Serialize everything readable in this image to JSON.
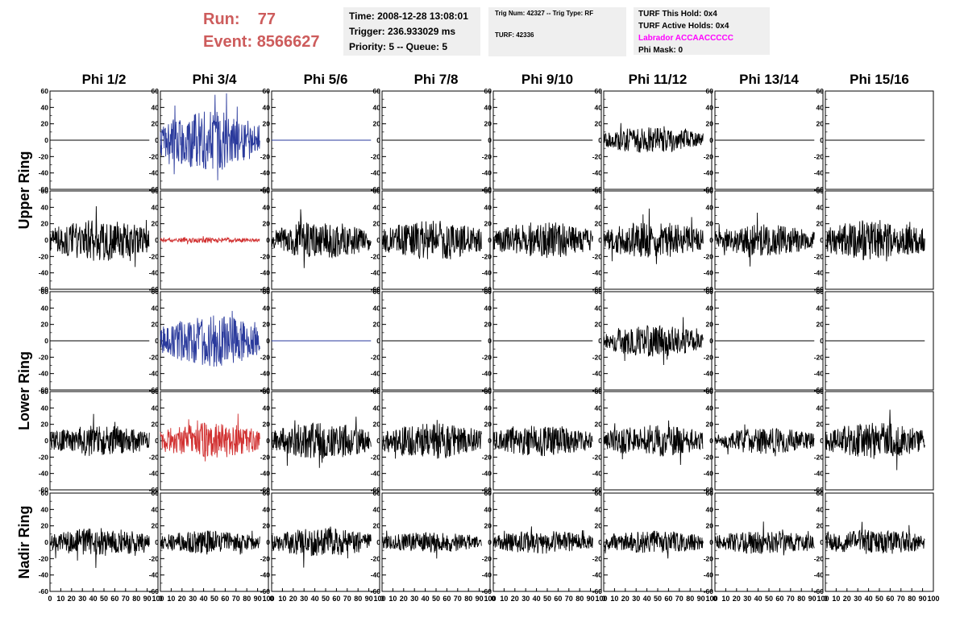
{
  "header": {
    "run_label": "Run:",
    "run_value": "77",
    "event_label": "Event:",
    "event_value": "8566627"
  },
  "info_box_1": {
    "time": "Time: 2008-12-28 13:08:01",
    "trigger": "Trigger: 236.933029 ms",
    "priority": "Priority: 5 -- Queue: 5"
  },
  "info_box_2": {
    "trig": "Trig Num: 42327 -- Trig Type: RF",
    "turf": "TURF: 42336"
  },
  "info_box_3": {
    "this_hold": "TURF This Hold: 0x4",
    "active_holds": "TURF Active Holds: 0x4",
    "labrador": "Labrador ACCAACCCCC",
    "phi_mask": "Phi Mask: 0"
  },
  "colors": {
    "header_red": "#cd5c5c",
    "labrador_magenta": "#ff00ff",
    "trace_black": "#000000",
    "trace_blue": "#2a3a9c",
    "trace_red": "#d13030"
  },
  "chart_data": {
    "type": "line",
    "column_labels": [
      "Phi 1/2",
      "Phi 3/4",
      "Phi 5/6",
      "Phi 7/8",
      "Phi 9/10",
      "Phi 11/12",
      "Phi 13/14",
      "Phi 15/16"
    ],
    "row_labels": [
      {
        "label": "Upper Ring",
        "rows": [
          0,
          1
        ]
      },
      {
        "label": "Lower Ring",
        "rows": [
          2,
          3
        ]
      },
      {
        "label": "Nadir Ring",
        "rows": [
          4
        ]
      }
    ],
    "ylim": [
      -60,
      60
    ],
    "yticks": [
      -60,
      -40,
      -20,
      0,
      20,
      40,
      60
    ],
    "xlim": [
      0,
      100
    ],
    "xticks": [
      0,
      10,
      20,
      30,
      40,
      50,
      60,
      70,
      80,
      90,
      100
    ],
    "sample_range": [
      0,
      92
    ],
    "panel_rows": [
      {
        "amplitudes": [
          0,
          22,
          0,
          0,
          0,
          10,
          0,
          0
        ],
        "colors": [
          "black",
          "blue",
          "blue",
          "black",
          "black",
          "black",
          "black",
          "black"
        ],
        "flat": [
          true,
          false,
          true,
          true,
          true,
          false,
          true,
          true
        ]
      },
      {
        "amplitudes": [
          16,
          2,
          14,
          15,
          14,
          14,
          12,
          16
        ],
        "colors": [
          "black",
          "red",
          "black",
          "black",
          "black",
          "black",
          "black",
          "black"
        ],
        "flat": [
          false,
          false,
          false,
          false,
          false,
          false,
          false,
          false
        ]
      },
      {
        "amplitudes": [
          0,
          20,
          0,
          0,
          0,
          12,
          0,
          0
        ],
        "colors": [
          "black",
          "blue",
          "blue",
          "black",
          "black",
          "black",
          "black",
          "black"
        ],
        "flat": [
          true,
          false,
          true,
          true,
          true,
          false,
          true,
          true
        ]
      },
      {
        "amplitudes": [
          12,
          14,
          14,
          14,
          12,
          12,
          10,
          14
        ],
        "colors": [
          "black",
          "red",
          "black",
          "black",
          "black",
          "black",
          "black",
          "black"
        ],
        "flat": [
          false,
          false,
          false,
          false,
          false,
          false,
          false,
          false
        ]
      },
      {
        "amplitudes": [
          11,
          9,
          11,
          8,
          9,
          9,
          9,
          10
        ],
        "colors": [
          "black",
          "black",
          "black",
          "black",
          "black",
          "black",
          "black",
          "black"
        ],
        "flat": [
          false,
          false,
          false,
          false,
          false,
          false,
          false,
          false
        ]
      }
    ]
  }
}
